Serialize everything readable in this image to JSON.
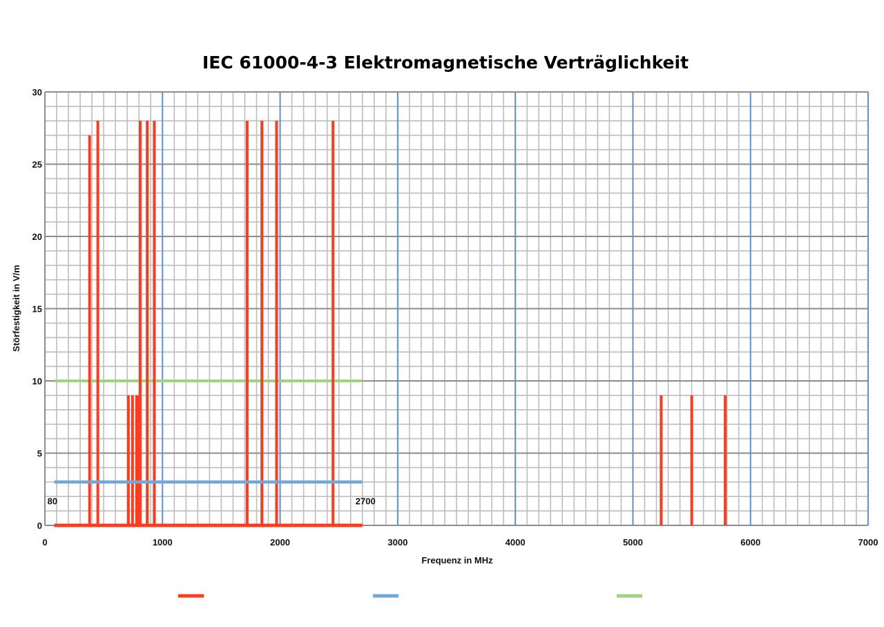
{
  "chart_data": {
    "type": "line",
    "title": "IEC 61000-4-3  Elektromagnetische Verträglichkeit",
    "xlabel": "Frequenz in MHz",
    "ylabel": "Störfestigkeit in V/m",
    "xlim": [
      0,
      7000
    ],
    "ylim": [
      0,
      30
    ],
    "x_ticks": [
      0,
      1000,
      2000,
      3000,
      4000,
      5000,
      6000,
      7000
    ],
    "y_ticks": [
      0,
      5,
      10,
      15,
      20,
      25,
      30
    ],
    "x_major_step": 1000,
    "x_minor_step": 100,
    "y_major_step": 5,
    "y_minor_step": 1,
    "grid": true,
    "legend_position": "bottom",
    "annotations": [
      {
        "text": "80",
        "x": 80,
        "y": 1.7
      },
      {
        "text": "2700",
        "x": 2700,
        "y": 1.7
      }
    ],
    "colors": {
      "grid_minor": "#bdbdbd",
      "grid_major_y": "#8c8c8c",
      "grid_major_x": "#5b8fd6",
      "series_red": "#ff3b1f",
      "series_blue": "#6fa8dc",
      "series_green": "#9fd37c"
    },
    "series": [
      {
        "color": "#ff3b1f",
        "baseline": {
          "x": [
            80,
            2700
          ],
          "y": 0
        },
        "spikes": [
          {
            "x": 380,
            "y": 27
          },
          {
            "x": 450,
            "y": 28
          },
          {
            "x": 710,
            "y": 9
          },
          {
            "x": 745,
            "y": 9
          },
          {
            "x": 780,
            "y": 9
          },
          {
            "x": 800,
            "y": 9
          },
          {
            "x": 810,
            "y": 28
          },
          {
            "x": 870,
            "y": 28
          },
          {
            "x": 930,
            "y": 28
          },
          {
            "x": 1720,
            "y": 28
          },
          {
            "x": 1845,
            "y": 28
          },
          {
            "x": 1970,
            "y": 28
          },
          {
            "x": 2450,
            "y": 28
          },
          {
            "x": 5240,
            "y": 9
          },
          {
            "x": 5500,
            "y": 9
          },
          {
            "x": 5785,
            "y": 9
          }
        ]
      },
      {
        "color": "#6fa8dc",
        "x": [
          80,
          2700
        ],
        "y": [
          3,
          3
        ]
      },
      {
        "color": "#9fd37c",
        "x": [
          80,
          2700
        ],
        "y": [
          10,
          10
        ]
      }
    ]
  }
}
